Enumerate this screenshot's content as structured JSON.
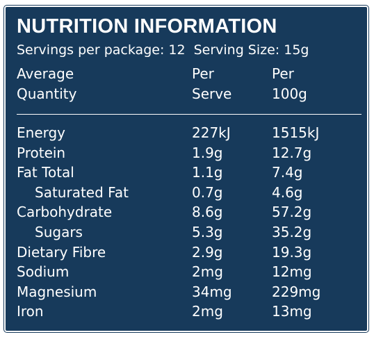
{
  "title": "NUTRITION INFORMATION",
  "servings": {
    "per_package": "Servings per package: 12",
    "serving_size": "Serving Size: 15g"
  },
  "header": {
    "label_line1": "Average",
    "label_line2": "Quantity",
    "serve_line1": "Per",
    "serve_line2": "Serve",
    "per100_line1": "Per",
    "per100_line2": "100g"
  },
  "rows": [
    {
      "name": "Energy",
      "serve": "227kJ",
      "per100": "1515kJ"
    },
    {
      "name": "Protein",
      "serve": "1.9g",
      "per100": "12.7g"
    },
    {
      "name": "Fat Total",
      "serve": "1.1g",
      "per100": "7.4g"
    },
    {
      "name": "Saturated Fat",
      "serve": "0.7g",
      "per100": "4.6g"
    },
    {
      "name": "Carbohydrate",
      "serve": "8.6g",
      "per100": "57.2g"
    },
    {
      "name": "Sugars",
      "serve": "5.3g",
      "per100": "35.2g"
    },
    {
      "name": "Dietary Fibre",
      "serve": "2.9g",
      "per100": "19.3g"
    },
    {
      "name": "Sodium",
      "serve": "2mg",
      "per100": "12mg"
    },
    {
      "name": "Magnesium",
      "serve": "34mg",
      "per100": "229mg"
    },
    {
      "name": "Iron",
      "serve": "2mg",
      "per100": "13mg"
    }
  ],
  "colors": {
    "panel_background": "#173a5b",
    "text": "#ffffff",
    "border": "#ffffff"
  }
}
